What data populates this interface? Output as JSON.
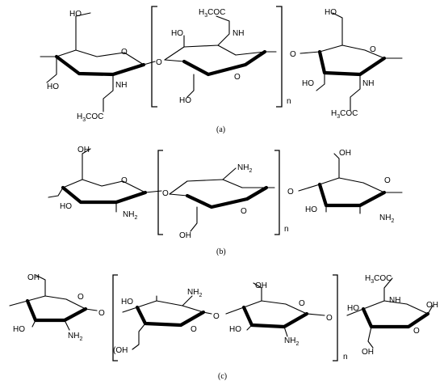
{
  "panels": [
    {
      "caption": "(a)",
      "repeat_index": "n",
      "labels": [
        "HO",
        "HO",
        "NH",
        "H3COC",
        "O",
        "O",
        "HO",
        "NH",
        "H3COC",
        "HO",
        "O",
        "O",
        "HO",
        "NH",
        "H3COC"
      ]
    },
    {
      "caption": "(b)",
      "repeat_index": "n",
      "labels": [
        "OH",
        "HO",
        "NH2",
        "O",
        "O",
        "NH2",
        "OH",
        "O",
        "O",
        "OH",
        "HO",
        "NH2"
      ]
    },
    {
      "caption": "(c)",
      "repeat_index": "n",
      "labels": [
        "OH",
        "HO",
        "NH2",
        "O",
        "O",
        "HO",
        "NH2",
        "HO",
        "O",
        "OH",
        "HO",
        "NH2",
        "O",
        "O",
        "H3COC",
        "NH",
        "HO",
        "OH"
      ]
    }
  ],
  "texts": {
    "a": {
      "ho_r1_top": "HO",
      "ho_r1_left": "HO",
      "nh_r1": "NH",
      "ac_r1": "H",
      "ac_r1_sub": "3",
      "ac_r1_end": "COC",
      "o_r1_ring": "O",
      "o_link1": "O",
      "ac_r2_top": "H",
      "ac_r2_sub": "3",
      "ac_r2_end": "COC",
      "nh_r2": "NH",
      "ho_r2_left": "HO",
      "ho_r2_bottom": "HO",
      "o_r2_ring": "O",
      "o_link2": "O",
      "ho_r3_top": "HO",
      "o_r3_ring": "O",
      "ho_r3_left": "HO",
      "nh_r3": "NH",
      "ac_r3": "H",
      "ac_r3_sub": "3",
      "ac_r3_end": "COC"
    },
    "b": {
      "oh_r1_top": "OH",
      "ho_r1_left": "HO",
      "nh2_r1": "NH",
      "nh2_r1_sub": "2",
      "o_r1_ring": "O",
      "o_link1": "O",
      "nh2_r2": "NH",
      "nh2_r2_sub": "2",
      "oh_r2_bottom": "OH",
      "o_r2_ring": "O",
      "o_link2": "O",
      "oh_r3_top": "OH",
      "o_r3_ring": "O",
      "ho_r3_left": "HO",
      "nh2_r3": "NH",
      "nh2_r3_sub": "2"
    },
    "c": {
      "oh_r1_top": "OH",
      "ho_r1_left": "HO",
      "nh2_r1": "NH",
      "nh2_r1_sub": "2",
      "o_r1_ring": "O",
      "o_link1": "O",
      "ho_r2_left": "HO",
      "nh2_r2": "NH",
      "nh2_r2_sub": "2",
      "oh_r2_bottom": "(OH",
      "oh_r2_bottom_end": "OH",
      "o_r2_ring": "O",
      "o_link2": "O",
      "oh_r3_top": "OH",
      "o_r3_ring": "O",
      "ho_r3_left": "HO",
      "nh2_r3": "NH",
      "nh2_r3_sub": "2",
      "o_link3": "O",
      "ac_r4": "H",
      "ac_r4_sub": "3",
      "ac_r4_end": "COC",
      "nh_r4": "NH",
      "ho_r4_left": "HO",
      "o_r4_ring": "O",
      "oh_r4_right": "OH",
      "oh_r4_bottom": "OH"
    }
  }
}
